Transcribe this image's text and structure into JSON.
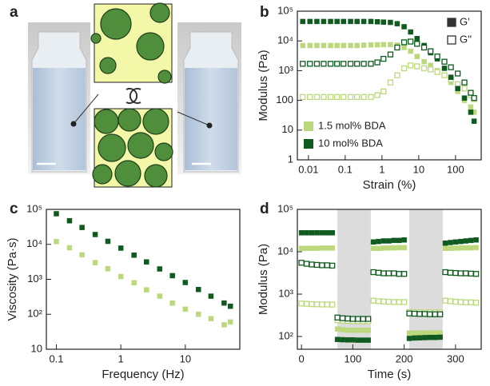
{
  "figure": {
    "panel_label": "a"
  },
  "chart_data": [
    {
      "type": "scatter",
      "panel_label": "b",
      "xlabel": "Strain (%)",
      "ylabel": "Modulus (Pa)",
      "xlog": true,
      "ylog": true,
      "xlim": [
        0.005,
        500
      ],
      "ylim": [
        1,
        100000
      ],
      "xticks": [
        0.01,
        0.1,
        1,
        10,
        100
      ],
      "yticks": [
        1,
        10,
        100,
        {
          "value": 1000,
          "label": "10³"
        },
        {
          "value": 10000,
          "label": "10⁴"
        },
        {
          "value": 100000,
          "label": "10⁵"
        }
      ],
      "x": [
        0.007,
        0.011,
        0.017,
        0.026,
        0.04,
        0.06,
        0.09,
        0.14,
        0.21,
        0.32,
        0.5,
        0.75,
        1.1,
        1.7,
        2.6,
        4,
        6,
        9,
        14,
        21,
        32,
        50,
        75,
        115,
        175,
        260,
        320
      ],
      "series": [
        {
          "color": "#bcd87c",
          "filled": true,
          "values": [
            7000,
            7000,
            7000,
            7000,
            7000,
            7000,
            7000,
            7000,
            7000,
            7200,
            7300,
            7400,
            7500,
            7500,
            7300,
            6000,
            4500,
            3000,
            2000,
            1500,
            1000,
            700,
            400,
            200,
            100,
            60,
            40
          ]
        },
        {
          "color": "#bcd87c",
          "filled": false,
          "values": [
            130,
            130,
            130,
            130,
            130,
            130,
            130,
            130,
            130,
            130,
            130,
            150,
            200,
            400,
            700,
            1200,
            1500,
            1400,
            1200,
            1100,
            900,
            700,
            500,
            350,
            250,
            150,
            110
          ]
        },
        {
          "color": "#0f5a1e",
          "filled": true,
          "values": [
            45000,
            45000,
            45000,
            45000,
            45000,
            45000,
            45000,
            45000,
            45000,
            45000,
            45000,
            44000,
            43000,
            42000,
            38000,
            30000,
            20000,
            12000,
            7000,
            4000,
            2500,
            1200,
            600,
            250,
            120,
            40,
            20
          ]
        },
        {
          "color": "#0f5a1e",
          "filled": false,
          "values": [
            1700,
            1700,
            1700,
            1700,
            1700,
            1700,
            1700,
            1700,
            1700,
            1700,
            1700,
            1900,
            2500,
            3500,
            6000,
            9000,
            9500,
            8000,
            6000,
            4500,
            3000,
            2000,
            1300,
            800,
            400,
            180,
            120
          ]
        }
      ],
      "legend_markers": [
        {
          "label": "G'",
          "color": "#333333",
          "filled": true
        },
        {
          "label": "G''",
          "color": "#333333",
          "filled": false
        }
      ],
      "legend_groups": [
        {
          "label": "1.5 mol% BDA",
          "color": "#bcd87c"
        },
        {
          "label": "10 mol% BDA",
          "color": "#0f5a1e"
        }
      ]
    },
    {
      "type": "scatter",
      "panel_label": "c",
      "xlabel": "Frequency (Hz)",
      "ylabel": "Viscosity (Pa·s)",
      "xlog": true,
      "ylog": true,
      "xlim": [
        0.07,
        70
      ],
      "ylim": [
        10,
        100000
      ],
      "xticks": [
        0.1,
        1,
        10
      ],
      "yticks": [
        10,
        {
          "value": 100,
          "label": "10²"
        },
        {
          "value": 1000,
          "label": "10³"
        },
        {
          "value": 10000,
          "label": "10⁴"
        },
        {
          "value": 100000,
          "label": "10⁵"
        }
      ],
      "x": [
        0.1,
        0.16,
        0.25,
        0.4,
        0.63,
        1,
        1.6,
        2.5,
        4,
        6.3,
        10,
        16,
        25,
        40,
        50
      ],
      "series": [
        {
          "color": "#bcd87c",
          "filled": true,
          "values": [
            12000,
            8000,
            5000,
            3000,
            2000,
            1200,
            800,
            500,
            330,
            210,
            140,
            100,
            75,
            50,
            60
          ]
        },
        {
          "color": "#0f5a1e",
          "filled": true,
          "values": [
            75000,
            47300,
            30400,
            19100,
            12200,
            7800,
            4900,
            3150,
            1980,
            1270,
            810,
            510,
            330,
            210,
            170
          ]
        }
      ]
    },
    {
      "type": "scatter",
      "panel_label": "d",
      "xlabel": "Time (s)",
      "ylabel": "Modulus (Pa)",
      "xlog": false,
      "ylog": true,
      "xlim": [
        -8,
        350
      ],
      "ylim": [
        50,
        100000
      ],
      "xticks": [
        0,
        100,
        200,
        300
      ],
      "yticks": [
        {
          "value": 100,
          "label": "10²"
        },
        {
          "value": 1000,
          "label": "10³"
        },
        {
          "value": 10000,
          "label": "10⁴"
        },
        {
          "value": 100000,
          "label": "10⁵"
        }
      ],
      "shaded_x": [
        [
          70,
          135
        ],
        [
          210,
          275
        ]
      ],
      "shade_color": "#dcdcdc",
      "x": [
        0,
        10,
        20,
        30,
        40,
        50,
        60,
        70,
        80,
        90,
        100,
        110,
        120,
        130,
        140,
        150,
        160,
        170,
        180,
        190,
        200,
        210,
        220,
        230,
        240,
        250,
        260,
        270,
        280,
        290,
        300,
        310,
        320,
        330,
        340
      ],
      "series": [
        {
          "color": "#bcd87c",
          "filled": true,
          "values": [
            12000,
            12000,
            12100,
            12100,
            12200,
            12200,
            12200,
            150,
            145,
            140,
            140,
            140,
            140,
            140,
            12000,
            12000,
            12200,
            12300,
            12400,
            12500,
            12500,
            120,
            120,
            121,
            121,
            122,
            122,
            122,
            12000,
            12100,
            12200,
            12300,
            12400,
            12400,
            12500
          ]
        },
        {
          "color": "#bcd87c",
          "filled": false,
          "values": [
            600,
            590,
            580,
            575,
            570,
            570,
            565,
            240,
            235,
            232,
            230,
            230,
            230,
            230,
            700,
            680,
            670,
            660,
            650,
            650,
            650,
            380,
            375,
            372,
            370,
            370,
            370,
            370,
            700,
            680,
            660,
            650,
            640,
            640,
            630
          ]
        },
        {
          "color": "#0f5a1e",
          "filled": true,
          "values": [
            28000,
            28000,
            28000,
            28000,
            28000,
            28000,
            28000,
            85,
            84,
            83,
            83,
            82,
            82,
            82,
            17000,
            17500,
            18000,
            18000,
            18500,
            18500,
            19000,
            90,
            92,
            93,
            94,
            95,
            95,
            96,
            16000,
            16500,
            17000,
            17500,
            18000,
            18500,
            19000
          ]
        },
        {
          "color": "#0f5a1e",
          "filled": false,
          "values": [
            5500,
            5200,
            5000,
            4900,
            4800,
            4800,
            4700,
            280,
            270,
            265,
            260,
            260,
            260,
            260,
            3300,
            3200,
            3100,
            3100,
            3100,
            3000,
            3000,
            350,
            345,
            340,
            340,
            335,
            335,
            335,
            3300,
            3200,
            3150,
            3100,
            3100,
            3050,
            3000
          ]
        }
      ]
    }
  ]
}
